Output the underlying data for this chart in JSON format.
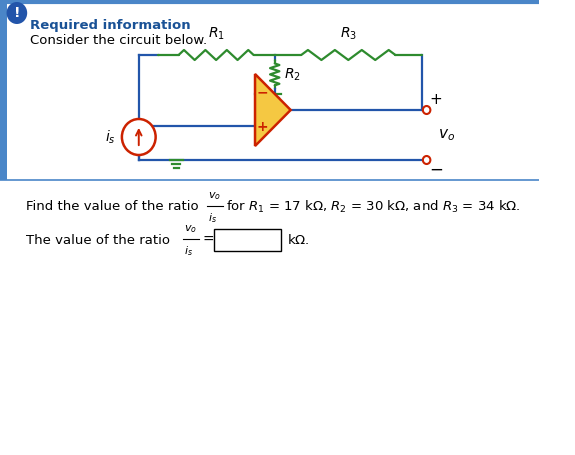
{
  "title": "Required information",
  "subtitle": "Consider the circuit below.",
  "bg_color": "#ffffff",
  "border_color": "#4a86c8",
  "title_color": "#1a5296",
  "circuit_color": "#2255aa",
  "resistor_green": "#2e8b2e",
  "opamp_fill": "#f5c842",
  "opamp_edge": "#cc2200",
  "source_edge": "#cc2200",
  "terminal_color": "#cc2200",
  "icon_bg": "#2255aa",
  "lw": 1.6
}
